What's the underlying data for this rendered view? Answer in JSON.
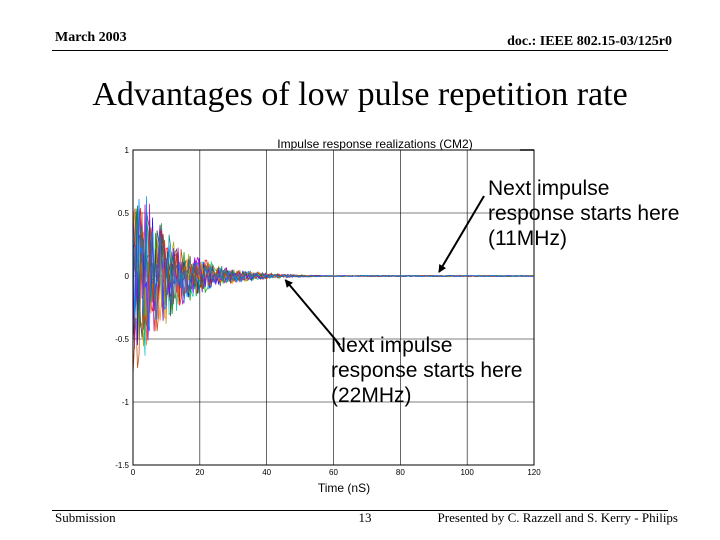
{
  "slide": {
    "header_left": "March 2003",
    "header_right": "doc.: IEEE 802.15-03/125r0",
    "title": "Advantages of low pulse repetition rate",
    "footer_left": "Submission",
    "footer_page": "13",
    "footer_right": "Presented by C. Razzell and S. Kerry - Philips"
  },
  "annotations": {
    "mhz11": "Next impulse response starts here (11MHz)",
    "mhz22": "Next impulse response starts here (22MHz)"
  },
  "chart_data": {
    "type": "line",
    "title": "Impulse response realizations (CM2)",
    "xlabel": "Time (nS)",
    "ylabel": "",
    "xlim": [
      0,
      120
    ],
    "ylim": [
      -1.5,
      1
    ],
    "xticks": [
      0,
      20,
      40,
      60,
      80,
      100,
      120
    ],
    "xtick_labels": [
      "0",
      "20",
      "40",
      "60",
      "80",
      "100",
      "120"
    ],
    "yticks": [
      1,
      0.5,
      0,
      -0.5,
      -1,
      -1.5
    ],
    "ytick_labels": [
      "1",
      "0.5",
      "0",
      "-0.5",
      "-1",
      "-1.5"
    ],
    "grid": true,
    "series_count": 12,
    "series_colors": [
      "#0000ff",
      "#00a000",
      "#ff0000",
      "#00c0c0",
      "#c000c0",
      "#a0a000",
      "#404040",
      "#ff8000",
      "#8000ff",
      "#008080",
      "#c04000",
      "#0080ff"
    ],
    "envelope": {
      "description": "dense random realizations decaying exponentially from t=0; near zero after ~45 nS",
      "peak_amplitude": 1.0,
      "decay_constant_ns": 11,
      "active_until_ns": 60
    },
    "markers": [
      {
        "label": "22MHz",
        "x": 45,
        "y": 0
      },
      {
        "label": "11MHz",
        "x": 91,
        "y": 0
      }
    ]
  }
}
